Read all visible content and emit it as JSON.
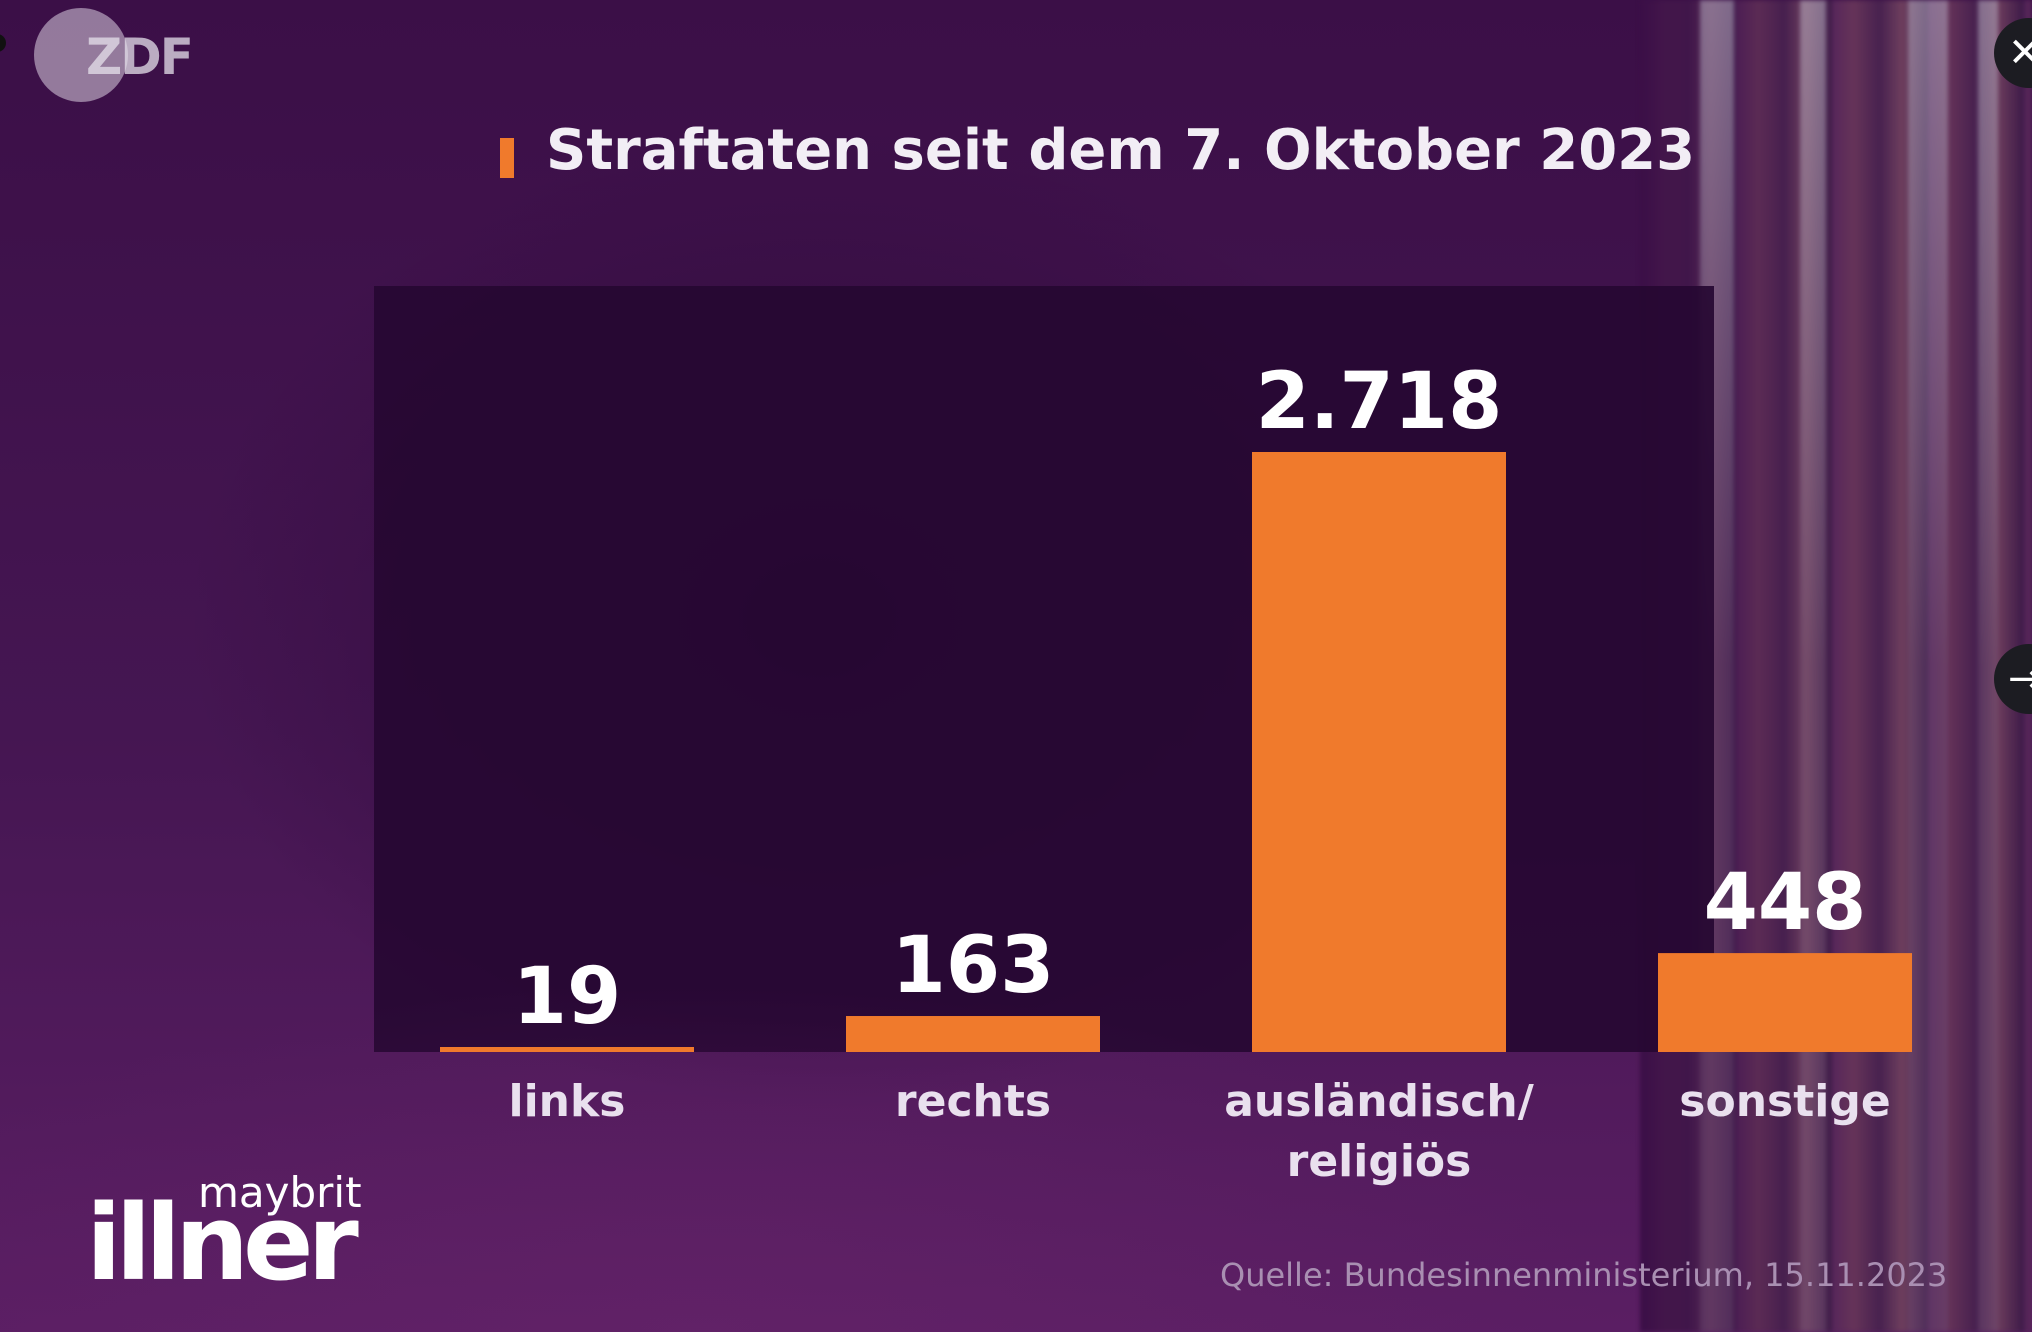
{
  "broadcaster": {
    "logo_text": "ZDF"
  },
  "show": {
    "first_name": "maybrit",
    "last_name": "illner"
  },
  "source": "Quelle: Bundesinnenministerium, 15.11.2023",
  "colors": {
    "bar": "#f07a2c",
    "background": "#3b0f47",
    "panel": "#260832",
    "text": "#ffffff"
  },
  "icons": {
    "close": "close-icon",
    "next": "arrow-right-icon"
  },
  "chart_data": {
    "type": "bar",
    "title": "Straftaten seit dem 7. Oktober 2023",
    "categories": [
      "links",
      "rechts",
      "ausländisch/\nreligiös",
      "sonstige"
    ],
    "values": [
      19,
      163,
      2718,
      448
    ],
    "value_labels": [
      "19",
      "163",
      "2.718",
      "448"
    ],
    "xlabel": "",
    "ylabel": "",
    "ylim": [
      0,
      2718
    ],
    "grid": false,
    "legend": "none"
  }
}
